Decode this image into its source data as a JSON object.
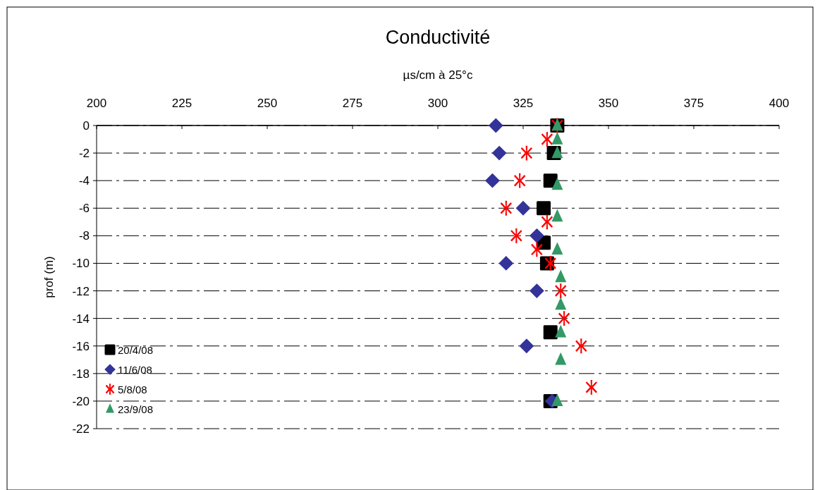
{
  "chart_data": {
    "type": "scatter",
    "title": "Conductivité",
    "xlabel": "µs/cm à 25°c",
    "ylabel": "prof (m)",
    "xlim": [
      200,
      400
    ],
    "xticks": [
      200,
      225,
      250,
      275,
      300,
      325,
      350,
      375,
      400
    ],
    "ylim": [
      -22,
      0
    ],
    "yticks": [
      0,
      -2,
      -4,
      -6,
      -8,
      -10,
      -12,
      -14,
      -16,
      -18,
      -20,
      -22
    ],
    "grid": "y",
    "legend": "bottom left",
    "series": [
      {
        "name": "20/4/08",
        "color": "#000000",
        "marker": "square",
        "x": [
          335,
          334,
          333,
          331,
          331,
          332,
          333,
          333
        ],
        "values": [
          0,
          -2,
          -4,
          -6,
          -8.5,
          -10,
          -15,
          -20
        ]
      },
      {
        "name": "11/6/08",
        "color": "#333399",
        "marker": "diamond",
        "x": [
          317,
          318,
          316,
          325,
          329,
          320,
          329,
          326,
          333.5
        ],
        "values": [
          0,
          -2,
          -4,
          -6,
          -8,
          -10,
          -12,
          -16,
          -20
        ]
      },
      {
        "name": "5/8/08",
        "color": "#ff0000",
        "marker": "cross",
        "x": [
          335,
          332,
          326,
          324,
          320,
          332,
          323,
          329,
          333,
          336,
          337,
          342,
          345
        ],
        "values": [
          0,
          -1,
          -2,
          -4,
          -6,
          -7,
          -8,
          -9,
          -10,
          -12,
          -14,
          -16,
          -19
        ]
      },
      {
        "name": "23/9/08",
        "color": "#339966",
        "marker": "triangle",
        "x": [
          335,
          335,
          335,
          335,
          335,
          335,
          336,
          336,
          336,
          336,
          335
        ],
        "values": [
          0,
          -1,
          -2,
          -4.3,
          -6.6,
          -9,
          -11,
          -13,
          -15,
          -17,
          -20
        ]
      }
    ]
  }
}
